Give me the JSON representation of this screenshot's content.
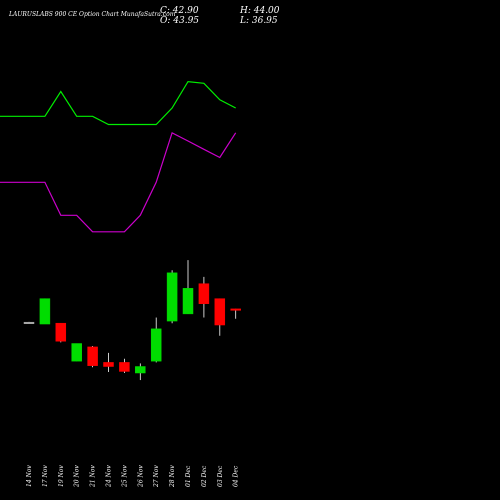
{
  "header": {
    "title": "LAURUSLABS 900  CE Option  Chart MunafaSutra.com",
    "close_label": "C: 42.90",
    "high_label": "H: 44.00",
    "open_label": "O: 43.95",
    "low_label": "L: 36.95"
  },
  "chart_data": {
    "type": "candlestick",
    "x_categories": [
      "14 Nov",
      "17 Nov",
      "19 Nov",
      "20 Nov",
      "21 Nov",
      "24 Nov",
      "25 Nov",
      "26 Nov",
      "27 Nov",
      "28 Nov",
      "01 Dec",
      "02 Dec",
      "03 Dec",
      "04 Dec"
    ],
    "candles": [
      {
        "date": "14 Nov",
        "open": 34.5,
        "high": 34.7,
        "low": 34.3,
        "close": 34.5
      },
      {
        "date": "17 Nov",
        "open": 33.2,
        "high": 51.2,
        "low": 33.2,
        "close": 51.2
      },
      {
        "date": "19 Nov",
        "open": 33.8,
        "high": 33.8,
        "low": 20.2,
        "close": 21.0
      },
      {
        "date": "20 Nov",
        "open": 6.9,
        "high": 19.4,
        "low": 6.9,
        "close": 19.4
      },
      {
        "date": "21 Nov",
        "open": 17.0,
        "high": 17.6,
        "low": 2.6,
        "close": 3.7
      },
      {
        "date": "24 Nov",
        "open": 6.0,
        "high": 12.8,
        "low": -0.8,
        "close": 3.1
      },
      {
        "date": "25 Nov",
        "open": 6.0,
        "high": 8.6,
        "low": -1.5,
        "close": -0.4
      },
      {
        "date": "26 Nov",
        "open": -1.5,
        "high": 5.3,
        "low": -6.5,
        "close": 3.1
      },
      {
        "date": "27 Nov",
        "open": 6.9,
        "high": 37.8,
        "low": 6.0,
        "close": 29.8
      },
      {
        "date": "28 Nov",
        "open": 35.3,
        "high": 71.3,
        "low": 33.8,
        "close": 69.5
      },
      {
        "date": "01 Dec",
        "open": 40.4,
        "high": 78.5,
        "low": 40.4,
        "close": 58.5
      },
      {
        "date": "02 Dec",
        "open": 61.8,
        "high": 66.6,
        "low": 37.8,
        "close": 47.6
      },
      {
        "date": "03 Dec",
        "open": 51.2,
        "high": 51.2,
        "low": 24.9,
        "close": 32.5
      },
      {
        "date": "04 Dec",
        "open": 43.95,
        "high": 44.0,
        "low": 36.95,
        "close": 42.9
      }
    ],
    "overlay_series": [
      {
        "color": "#00ee00",
        "values": [
          95,
          95,
          98,
          95,
          95,
          94,
          94,
          94,
          94,
          96,
          99.2,
          99,
          97,
          96
        ]
      },
      {
        "color": "#cc00cc",
        "values": [
          87,
          87,
          83,
          83,
          81,
          81,
          81,
          83,
          87,
          93,
          92,
          91,
          90,
          93
        ]
      }
    ],
    "colors": {
      "up": "#00dd00",
      "down": "#ff0000",
      "neutral": "#aaaaaa"
    },
    "grid": false,
    "legend": "none",
    "background": "#000000"
  }
}
